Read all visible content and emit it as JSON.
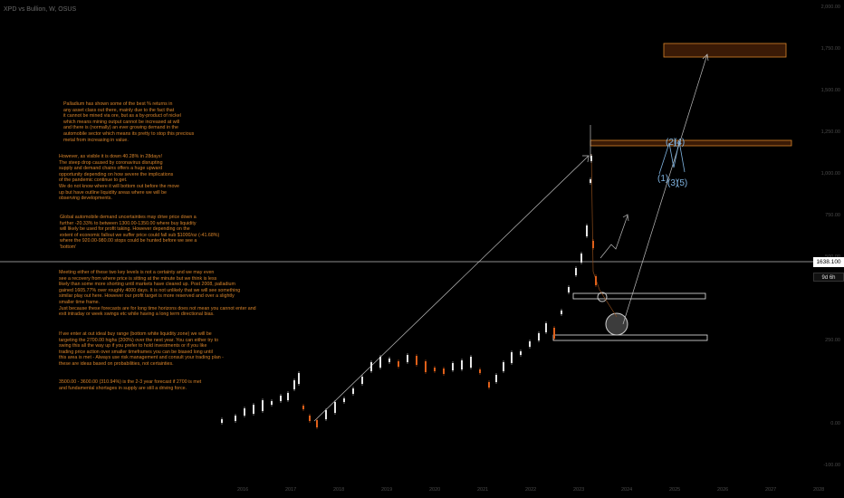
{
  "header": {
    "title": "XPD vs Bullion, W, OSUS"
  },
  "price_badge": "1638.100",
  "time_badge": "9d 6h",
  "y_ticks": [
    "2,000.00",
    "1,750.00",
    "1,500.00",
    "1,250.00",
    "1,000.00",
    "750.00",
    "500.00",
    "250.00",
    "0.00",
    "-100.00"
  ],
  "x_ticks": [
    "2016",
    "2017",
    "2018",
    "2019",
    "2020",
    "2021",
    "2022",
    "2023",
    "2024",
    "2025",
    "2026",
    "2027",
    "2028"
  ],
  "wave_labels": {
    "w2": "(2)",
    "w4": "(4)",
    "w1": "(1)",
    "w3": "(3)",
    "w5": "(5)"
  },
  "notes": {
    "p1": "Palladium has shown some of the best % returns in\nany asset class out there, mainly due to the fact that\nit cannot be mined via ore, but as a by-product of nickel\nwhich means mining output cannot be increased at will\nand there is (normally) an ever growing demand in the\nautomobile sector which means its pretty to stop this precious\nmetal from increasing in value.",
    "p2": "However, as visible it is down 40.28% in 28days!\nThe steep drop caused by coronavirus disrupting\nsupply and demand chains offers a huge upward\nopportunity depending on how severe the implications\nof the pandemic continue to get.\nWe do not know where it will bottom out before the move\nup but have outline liquidity areas where we will be\nobserving developments.",
    "p3": "Global automobile demand uncertainties may drive price down a\nfurther -20.33% to between 1300.00-1350.00 where buy liquidity\nwill likely be used for profit taking. However depending on the\nextent of economic fallout we suffer price could fall sub $1000/oz (-41.68%)\nwhere the 920.00-980.00 stops could be hunted before we see a\n'bottom'",
    "p4": "Meeting either of these two key levels is not a certainty and we may even\nsee a recovery from where price is sitting at the minute but we think is less\nlikely than some more shorting until markets have cleared up. Post 2008, palladium\ngained 1605.77% over roughly 4000 days. It is not unlikely that we will see something\nsimilar play out here. However our profit target is more reserved and over a slightly\nsmaller time frame.\nJust because these forecasts are for long time horizons does not mean you cannot enter and\nexit intraday or week swings etc while having a long term directional bias.",
    "p5": "If we enter at out ideal buy range (bottom white liquidity zone) we will be\ntargeting the 2700.00 highs (200%) over the next year. You can either try to\nswing this all the way up if you prefer to hold investments or if you like\ntrading price action over smaller timeframes you can be biased long until\nthis area is met - Always use risk management and consult your trading plan -\nthese are ideas based on probabilities, not certainties.",
    "p6": "3500.00 - 3600.00 (310.94%) is the 2-3 year forecast if 2700 is met\nand fundamental shortages in supply are still a driving force."
  },
  "colors": {
    "accent": "#d9842a",
    "up": "#e6e6e6",
    "down": "#e0601a",
    "wave": "#7fb3e0"
  }
}
